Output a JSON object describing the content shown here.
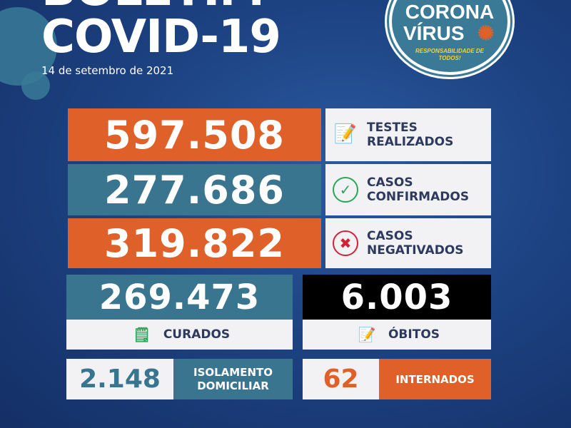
{
  "header": {
    "title_line1": "BOLETIM",
    "title_line2": "COVID-19",
    "date": "14 de setembro de 2021"
  },
  "badge": {
    "line1": "CORONA",
    "line2": "VÍRUS",
    "tagline": "RESPONSABILIDADE DE TODOS!"
  },
  "stats": [
    {
      "value": "597.508",
      "label_line1": "TESTES",
      "label_line2": "REALIZADOS",
      "icon": "document-pencil-icon",
      "color": "#e0602a"
    },
    {
      "value": "277.686",
      "label_line1": "CASOS",
      "label_line2": "CONFIRMADOS",
      "icon": "check-circle-icon",
      "color": "#3a7590"
    },
    {
      "value": "319.822",
      "label_line1": "CASOS",
      "label_line2": "NEGATIVADOS",
      "icon": "x-circle-icon",
      "color": "#e0602a"
    }
  ],
  "curados": {
    "value": "269.473",
    "label": "CURADOS"
  },
  "obitos": {
    "value": "6.003",
    "label": "ÓBITOS"
  },
  "isolamento": {
    "value": "2.148",
    "label_line1": "ISOLAMENTO",
    "label_line2": "DOMICILIAR"
  },
  "internados": {
    "value": "62",
    "label": "INTERNADOS"
  }
}
